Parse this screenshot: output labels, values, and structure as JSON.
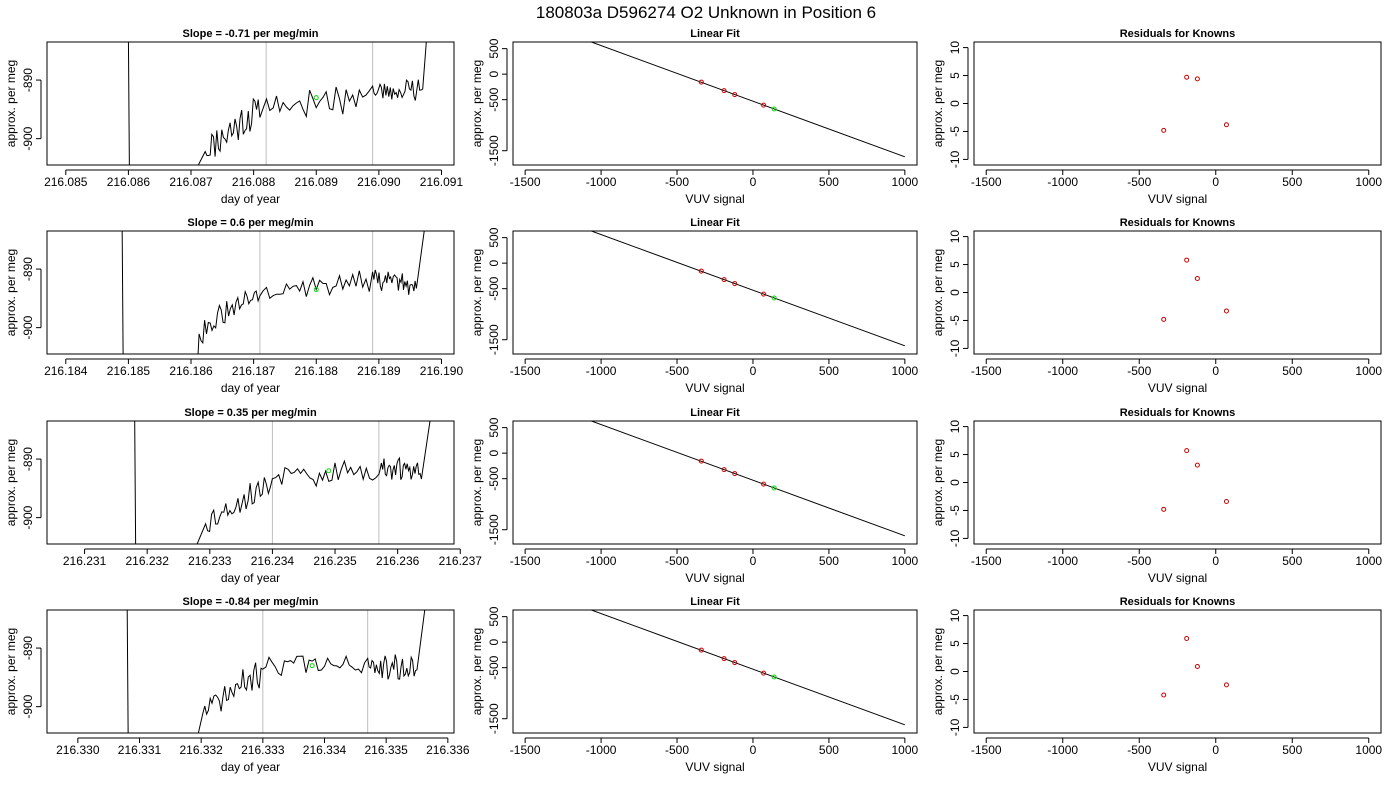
{
  "main_title": "180803a      D596274    O2 Unknown in Position  6",
  "colors": {
    "known": "#cc0000",
    "unknown": "#00e000",
    "line": "#000000",
    "vline": "#bfbfbf"
  },
  "chart_data": [
    {
      "type": "line",
      "panel": "timeseries",
      "row": 1,
      "title": "Slope =  -0.71  per meg/min",
      "xlabel": "day of year",
      "ylabel": "approx. per meg",
      "xlim": [
        216.0847,
        216.0912
      ],
      "ylim": [
        -904.5,
        -883.5
      ],
      "xticks": [
        216.085,
        216.086,
        216.087,
        216.088,
        216.089,
        216.09,
        216.091
      ],
      "xtick_labels": [
        "216.085",
        "216.086",
        "216.087",
        "216.088",
        "216.089",
        "216.090",
        "216.091"
      ],
      "yticks": [
        -890,
        -900
      ],
      "ytick_labels": [
        "-890",
        "-900"
      ],
      "vlines": [
        216.0882,
        216.0899
      ],
      "rise_x": 216.086,
      "fall_x": 216.0908,
      "start_x": 216.0869,
      "start_y": -909,
      "end_x": 216.0908,
      "unknown_point": {
        "x": 216.089,
        "y": -893
      },
      "segments": [
        {
          "x0": 216.0872,
          "x1": 216.0881,
          "y0": -902,
          "y1": -895,
          "amp": 2.4,
          "seed": 11
        },
        {
          "x0": 216.0881,
          "x1": 216.0899,
          "y0": -894.5,
          "y1": -892.5,
          "amp": 2.1,
          "seed": 17
        },
        {
          "x0": 216.0899,
          "x1": 216.0907,
          "y0": -892,
          "y1": -891.5,
          "amp": 1.7,
          "seed": 23
        }
      ]
    },
    {
      "type": "scatter",
      "panel": "linear_fit",
      "row": 1,
      "title": "Linear Fit",
      "xlabel": "VUV signal",
      "ylabel": "approx. per meg",
      "xlim": [
        -1580,
        1080
      ],
      "ylim": [
        -1780,
        630
      ],
      "xticks": [
        -1500,
        -1000,
        -500,
        0,
        500,
        1000
      ],
      "xtick_labels": [
        "-1500",
        "-1000",
        "-500",
        "0",
        "500",
        "1000"
      ],
      "yticks": [
        500,
        0,
        -500,
        -1500
      ],
      "ytick_labels": [
        "500",
        "0",
        "-500",
        "-1500"
      ],
      "fit_line": {
        "slope": -1.09,
        "intercept": -530
      },
      "knowns": {
        "x": [
          -340,
          -190,
          -120,
          70
        ],
        "y": [
          -155,
          -322,
          -400,
          -607
        ]
      },
      "unknown": {
        "x": 140,
        "y": -683
      }
    },
    {
      "type": "scatter",
      "panel": "residuals",
      "row": 1,
      "title": "Residuals for Knowns",
      "xlabel": "VUV signal",
      "ylabel": "approx. per meg",
      "xlim": [
        -1580,
        1080
      ],
      "ylim": [
        -11,
        11
      ],
      "xticks": [
        -1500,
        -1000,
        -500,
        0,
        500,
        1000
      ],
      "xtick_labels": [
        "-1500",
        "-1000",
        "-500",
        "0",
        "500",
        "1000"
      ],
      "yticks": [
        10,
        5,
        0,
        -5,
        -10
      ],
      "ytick_labels": [
        "10",
        "5",
        "0",
        "-5",
        "-10"
      ],
      "knowns": {
        "x": [
          -340,
          -190,
          -120,
          70
        ],
        "y": [
          -4.8,
          4.7,
          4.4,
          -3.8
        ]
      }
    },
    {
      "type": "line",
      "panel": "timeseries",
      "row": 2,
      "title": "Slope =  0.6  per meg/min",
      "xlabel": "day of year",
      "ylabel": "approx. per meg",
      "xlim": [
        216.1837,
        216.1902
      ],
      "ylim": [
        -904.5,
        -883.5
      ],
      "xticks": [
        216.184,
        216.185,
        216.186,
        216.187,
        216.188,
        216.189,
        216.19
      ],
      "xtick_labels": [
        "216.184",
        "216.185",
        "216.186",
        "216.187",
        "216.188",
        "216.189",
        "216.190"
      ],
      "yticks": [
        -890,
        -900
      ],
      "ytick_labels": [
        "-890",
        "-900"
      ],
      "vlines": [
        216.1871,
        216.1889
      ],
      "rise_x": 216.1849,
      "fall_x": 216.1898,
      "start_x": 216.1861,
      "start_y": -907,
      "end_x": 216.1898,
      "unknown_point": {
        "x": 216.188,
        "y": -893.5
      },
      "segments": [
        {
          "x0": 216.1861,
          "x1": 216.1871,
          "y0": -901,
          "y1": -894,
          "amp": 1.8,
          "seed": 31
        },
        {
          "x0": 216.1871,
          "x1": 216.1889,
          "y0": -893.5,
          "y1": -892,
          "amp": 1.6,
          "seed": 37
        },
        {
          "x0": 216.1889,
          "x1": 216.1896,
          "y0": -891.5,
          "y1": -893,
          "amp": 1.6,
          "seed": 41
        }
      ]
    },
    {
      "type": "scatter",
      "panel": "linear_fit",
      "row": 2,
      "title": "Linear Fit",
      "xlabel": "VUV signal",
      "ylabel": "approx. per meg",
      "xlim": [
        -1580,
        1080
      ],
      "ylim": [
        -1780,
        630
      ],
      "xticks": [
        -1500,
        -1000,
        -500,
        0,
        500,
        1000
      ],
      "xtick_labels": [
        "-1500",
        "-1000",
        "-500",
        "0",
        "500",
        "1000"
      ],
      "yticks": [
        500,
        0,
        -500,
        -1500
      ],
      "ytick_labels": [
        "500",
        "0",
        "-500",
        "-1500"
      ],
      "fit_line": {
        "slope": -1.09,
        "intercept": -530
      },
      "knowns": {
        "x": [
          -340,
          -190,
          -120,
          70
        ],
        "y": [
          -155,
          -322,
          -400,
          -607
        ]
      },
      "unknown": {
        "x": 140,
        "y": -683
      }
    },
    {
      "type": "scatter",
      "panel": "residuals",
      "row": 2,
      "title": "Residuals for Knowns",
      "xlabel": "VUV signal",
      "ylabel": "approx. per meg",
      "xlim": [
        -1580,
        1080
      ],
      "ylim": [
        -11,
        11
      ],
      "xticks": [
        -1500,
        -1000,
        -500,
        0,
        500,
        1000
      ],
      "xtick_labels": [
        "-1500",
        "-1000",
        "-500",
        "0",
        "500",
        "1000"
      ],
      "yticks": [
        10,
        5,
        0,
        -5,
        -10
      ],
      "ytick_labels": [
        "10",
        "5",
        "0",
        "-5",
        "-10"
      ],
      "knowns": {
        "x": [
          -340,
          -190,
          -120,
          70
        ],
        "y": [
          -4.8,
          5.8,
          2.5,
          -3.3
        ]
      }
    },
    {
      "type": "line",
      "panel": "timeseries",
      "row": 3,
      "title": "Slope =  0.35  per meg/min",
      "xlabel": "day of year",
      "ylabel": "approx. per meg",
      "xlim": [
        216.2304,
        216.2369
      ],
      "ylim": [
        -904.5,
        -883.5
      ],
      "xticks": [
        216.231,
        216.232,
        216.233,
        216.234,
        216.235,
        216.236,
        216.237
      ],
      "xtick_labels": [
        "216.231",
        "216.232",
        "216.233",
        "216.234",
        "216.235",
        "216.236",
        "216.237"
      ],
      "yticks": [
        -890,
        -900
      ],
      "ytick_labels": [
        "-890",
        "-900"
      ],
      "vlines": [
        216.234,
        216.2357
      ],
      "rise_x": 216.2318,
      "fall_x": 216.2366,
      "start_x": 216.2327,
      "start_y": -907,
      "end_x": 216.2366,
      "unknown_point": {
        "x": 216.2349,
        "y": -892
      },
      "segments": [
        {
          "x0": 216.2329,
          "x1": 216.234,
          "y0": -901,
          "y1": -894,
          "amp": 1.8,
          "seed": 53
        },
        {
          "x0": 216.234,
          "x1": 216.2357,
          "y0": -893,
          "y1": -892,
          "amp": 1.6,
          "seed": 59
        },
        {
          "x0": 216.2357,
          "x1": 216.2364,
          "y0": -891.5,
          "y1": -892,
          "amp": 1.6,
          "seed": 61
        }
      ]
    },
    {
      "type": "scatter",
      "panel": "linear_fit",
      "row": 3,
      "title": "Linear Fit",
      "xlabel": "VUV signal",
      "ylabel": "approx. per meg",
      "xlim": [
        -1580,
        1080
      ],
      "ylim": [
        -1780,
        630
      ],
      "xticks": [
        -1500,
        -1000,
        -500,
        0,
        500,
        1000
      ],
      "xtick_labels": [
        "-1500",
        "-1000",
        "-500",
        "0",
        "500",
        "1000"
      ],
      "yticks": [
        500,
        0,
        -500,
        -1500
      ],
      "ytick_labels": [
        "500",
        "0",
        "-500",
        "-1500"
      ],
      "fit_line": {
        "slope": -1.09,
        "intercept": -530
      },
      "knowns": {
        "x": [
          -340,
          -190,
          -120,
          70
        ],
        "y": [
          -155,
          -322,
          -400,
          -607
        ]
      },
      "unknown": {
        "x": 140,
        "y": -683
      }
    },
    {
      "type": "scatter",
      "panel": "residuals",
      "row": 3,
      "title": "Residuals for Knowns",
      "xlabel": "VUV signal",
      "ylabel": "approx. per meg",
      "xlim": [
        -1580,
        1080
      ],
      "ylim": [
        -11,
        11
      ],
      "xticks": [
        -1500,
        -1000,
        -500,
        0,
        500,
        1000
      ],
      "xtick_labels": [
        "-1500",
        "-1000",
        "-500",
        "0",
        "500",
        "1000"
      ],
      "yticks": [
        10,
        5,
        0,
        -5,
        -10
      ],
      "ytick_labels": [
        "10",
        "5",
        "0",
        "-5",
        "-10"
      ],
      "knowns": {
        "x": [
          -340,
          -190,
          -120,
          70
        ],
        "y": [
          -4.8,
          5.7,
          3.1,
          -3.4
        ]
      }
    },
    {
      "type": "line",
      "panel": "timeseries",
      "row": 4,
      "title": "Slope =  -0.84  per meg/min",
      "xlabel": "day of year",
      "ylabel": "approx. per meg",
      "xlim": [
        216.3295,
        216.3361
      ],
      "ylim": [
        -904.5,
        -883.5
      ],
      "xticks": [
        216.33,
        216.331,
        216.332,
        216.333,
        216.334,
        216.335,
        216.336
      ],
      "xtick_labels": [
        "216.330",
        "216.331",
        "216.332",
        "216.333",
        "216.334",
        "216.335",
        "216.336"
      ],
      "yticks": [
        -890,
        -900
      ],
      "ytick_labels": [
        "-890",
        "-900"
      ],
      "vlines": [
        216.333,
        216.3347
      ],
      "rise_x": 216.3308,
      "fall_x": 216.3357,
      "start_x": 216.3319,
      "start_y": -907,
      "end_x": 216.3357,
      "unknown_point": {
        "x": 216.3338,
        "y": -893
      },
      "segments": [
        {
          "x0": 216.332,
          "x1": 216.333,
          "y0": -901,
          "y1": -894,
          "amp": 2.0,
          "seed": 71
        },
        {
          "x0": 216.333,
          "x1": 216.3347,
          "y0": -893,
          "y1": -893,
          "amp": 2.0,
          "seed": 73
        },
        {
          "x0": 216.3347,
          "x1": 216.3355,
          "y0": -893,
          "y1": -893.5,
          "amp": 1.8,
          "seed": 79
        }
      ]
    },
    {
      "type": "scatter",
      "panel": "linear_fit",
      "row": 4,
      "title": "Linear Fit",
      "xlabel": "VUV signal",
      "ylabel": "approx. per meg",
      "xlim": [
        -1580,
        1080
      ],
      "ylim": [
        -1780,
        630
      ],
      "xticks": [
        -1500,
        -1000,
        -500,
        0,
        500,
        1000
      ],
      "xtick_labels": [
        "-1500",
        "-1000",
        "-500",
        "0",
        "500",
        "1000"
      ],
      "yticks": [
        500,
        0,
        -500,
        -1500
      ],
      "ytick_labels": [
        "500",
        "0",
        "-500",
        "-1500"
      ],
      "fit_line": {
        "slope": -1.09,
        "intercept": -530
      },
      "knowns": {
        "x": [
          -340,
          -190,
          -120,
          70
        ],
        "y": [
          -155,
          -322,
          -400,
          -607
        ]
      },
      "unknown": {
        "x": 140,
        "y": -683
      }
    },
    {
      "type": "scatter",
      "panel": "residuals",
      "row": 4,
      "title": "Residuals for Knowns",
      "xlabel": "VUV signal",
      "ylabel": "approx. per meg",
      "xlim": [
        -1580,
        1080
      ],
      "ylim": [
        -11,
        11
      ],
      "xticks": [
        -1500,
        -1000,
        -500,
        0,
        500,
        1000
      ],
      "xtick_labels": [
        "-1500",
        "-1000",
        "-500",
        "0",
        "500",
        "1000"
      ],
      "yticks": [
        10,
        5,
        0,
        -5,
        -10
      ],
      "ytick_labels": [
        "10",
        "5",
        "0",
        "-5",
        "-10"
      ],
      "knowns": {
        "x": [
          -340,
          -190,
          -120,
          70
        ],
        "y": [
          -4.2,
          5.9,
          0.9,
          -2.4
        ]
      }
    }
  ]
}
